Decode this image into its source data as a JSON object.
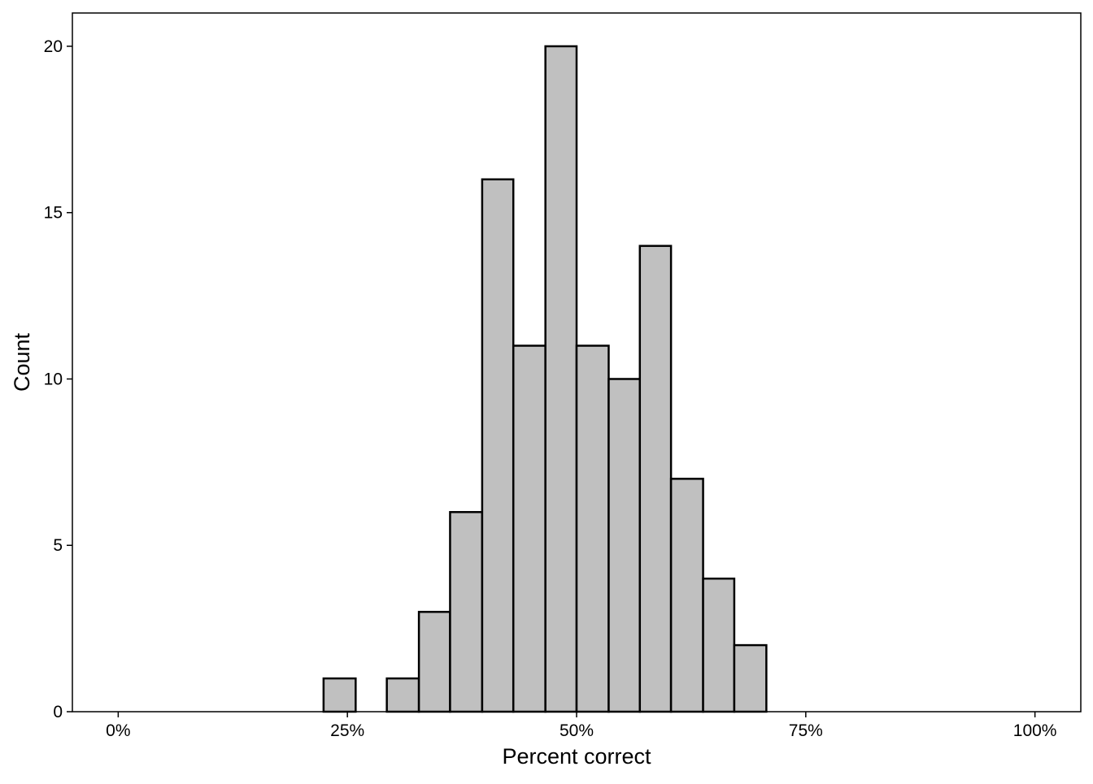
{
  "chart_data": {
    "type": "bar",
    "title": "",
    "xlabel": "Percent correct",
    "ylabel": "Count",
    "x_ticks": [
      {
        "value": 0,
        "label": "0%"
      },
      {
        "value": 25,
        "label": "25%"
      },
      {
        "value": 50,
        "label": "50%"
      },
      {
        "value": 75,
        "label": "75%"
      },
      {
        "value": 100,
        "label": "100%"
      }
    ],
    "y_ticks": [
      {
        "value": 0,
        "label": "0"
      },
      {
        "value": 5,
        "label": "5"
      },
      {
        "value": 10,
        "label": "10"
      },
      {
        "value": 15,
        "label": "15"
      },
      {
        "value": 20,
        "label": "20"
      }
    ],
    "xlim": [
      -5,
      105
    ],
    "ylim": [
      0,
      21
    ],
    "grid": false,
    "bins": [
      {
        "x0": 22.4,
        "x1": 25.9,
        "count": 1
      },
      {
        "x0": 29.3,
        "x1": 32.8,
        "count": 1
      },
      {
        "x0": 32.8,
        "x1": 36.2,
        "count": 3
      },
      {
        "x0": 36.2,
        "x1": 39.7,
        "count": 6
      },
      {
        "x0": 39.7,
        "x1": 43.1,
        "count": 16
      },
      {
        "x0": 43.1,
        "x1": 46.6,
        "count": 11
      },
      {
        "x0": 46.6,
        "x1": 50.0,
        "count": 20
      },
      {
        "x0": 50.0,
        "x1": 53.5,
        "count": 11
      },
      {
        "x0": 53.5,
        "x1": 56.9,
        "count": 10
      },
      {
        "x0": 56.9,
        "x1": 60.3,
        "count": 14
      },
      {
        "x0": 60.3,
        "x1": 63.8,
        "count": 7
      },
      {
        "x0": 63.8,
        "x1": 67.2,
        "count": 4
      },
      {
        "x0": 67.2,
        "x1": 70.7,
        "count": 2
      }
    ],
    "colors": {
      "bar_fill": "#c0c0c0",
      "bar_stroke": "#000000",
      "axis": "#000000"
    }
  }
}
